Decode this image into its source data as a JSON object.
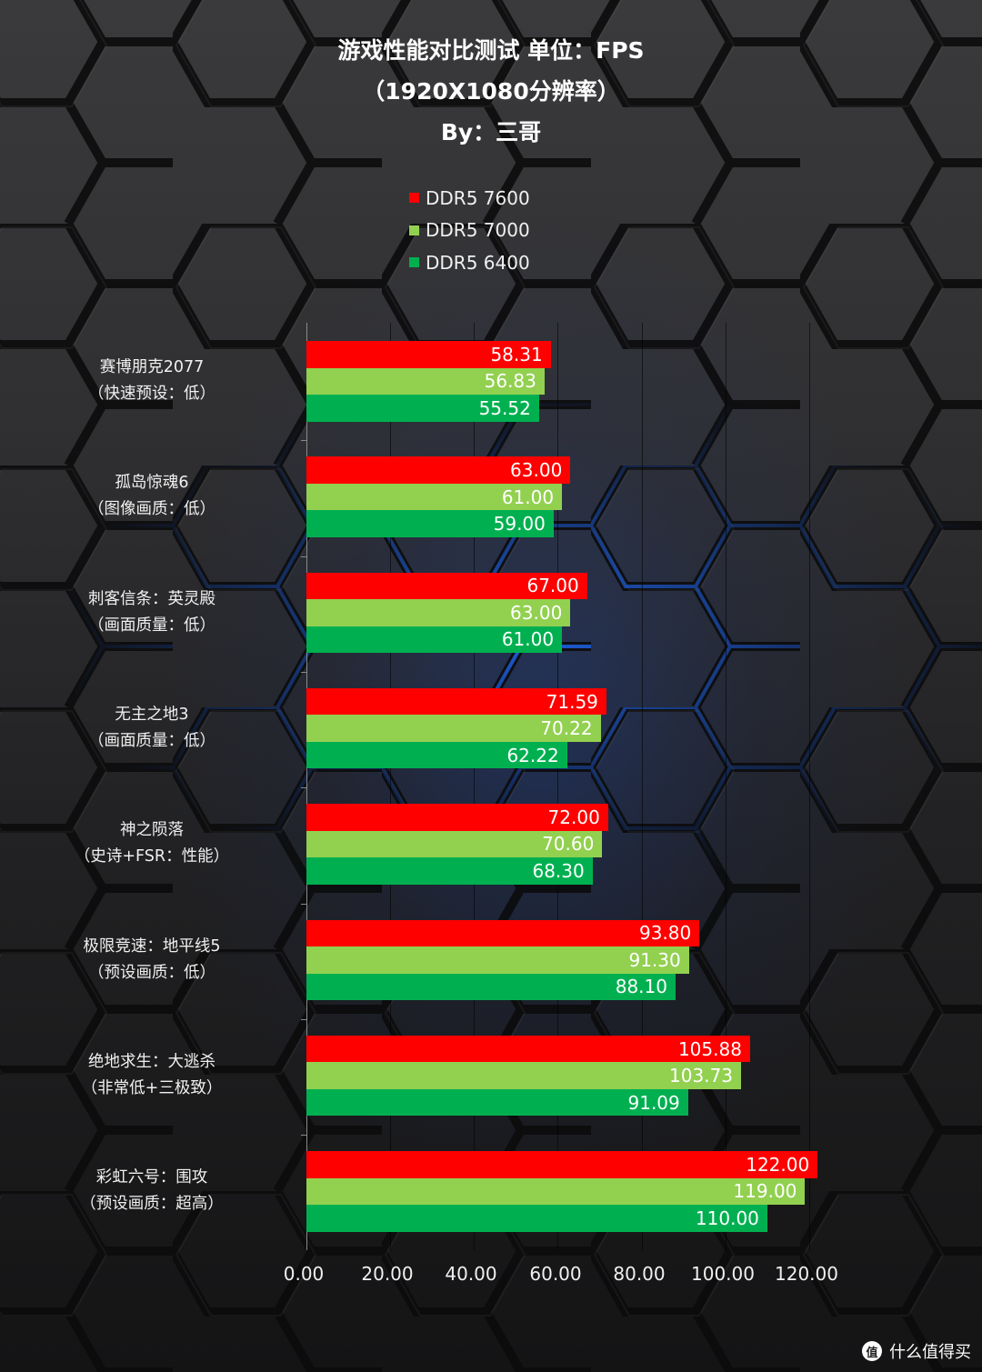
{
  "title": {
    "line1": "游戏性能对比测试 单位：FPS",
    "line2": "（1920X1080分辨率）",
    "line3": "By：三哥"
  },
  "legend": [
    {
      "label": "DDR5 7600",
      "color": "#ff0000"
    },
    {
      "label": "DDR5 7000",
      "color": "#92d050"
    },
    {
      "label": "DDR5 6400",
      "color": "#00b050"
    }
  ],
  "watermark": {
    "icon": "值",
    "text": "什么值得买"
  },
  "chart_data": {
    "type": "bar",
    "orientation": "horizontal",
    "title": "游戏性能对比测试 单位：FPS（1920X1080分辨率）By：三哥",
    "xlabel": "",
    "ylabel": "",
    "xlim": [
      0,
      120
    ],
    "x_ticks": [
      "0.00",
      "20.00",
      "40.00",
      "60.00",
      "80.00",
      "100.00",
      "120.00"
    ],
    "grid": true,
    "legend_position": "top",
    "categories": [
      {
        "name": "赛博朋克2077",
        "setting": "（快速预设：低）"
      },
      {
        "name": "孤岛惊魂6",
        "setting": "（图像画质：低）"
      },
      {
        "name": "刺客信条：英灵殿",
        "setting": "（画面质量：低）"
      },
      {
        "name": "无主之地3",
        "setting": "（画面质量：低）"
      },
      {
        "name": "神之陨落",
        "setting": "（史诗+FSR：性能）"
      },
      {
        "name": "极限竞速：地平线5",
        "setting": "（预设画质：低）"
      },
      {
        "name": "绝地求生：大逃杀",
        "setting": "（非常低+三极致）"
      },
      {
        "name": "彩虹六号：围攻",
        "setting": "（预设画质：超高）"
      }
    ],
    "series": [
      {
        "name": "DDR5 7600",
        "color": "#ff0000",
        "values": [
          58.31,
          63.0,
          67.0,
          71.59,
          72.0,
          93.8,
          105.88,
          122.0
        ],
        "labels": [
          "58.31",
          "63.00",
          "67.00",
          "71.59",
          "72.00",
          "93.80",
          "105.88",
          "122.00"
        ]
      },
      {
        "name": "DDR5 7000",
        "color": "#92d050",
        "values": [
          56.83,
          61.0,
          63.0,
          70.22,
          70.6,
          91.3,
          103.73,
          119.0
        ],
        "labels": [
          "56.83",
          "61.00",
          "63.00",
          "70.22",
          "70.60",
          "91.30",
          "103.73",
          "119.00"
        ]
      },
      {
        "name": "DDR5 6400",
        "color": "#00b050",
        "values": [
          55.52,
          59.0,
          61.0,
          62.22,
          68.3,
          88.1,
          91.09,
          110.0
        ],
        "labels": [
          "55.52",
          "59.00",
          "61.00",
          "62.22",
          "68.30",
          "88.10",
          "91.09",
          "110.00"
        ]
      }
    ]
  }
}
